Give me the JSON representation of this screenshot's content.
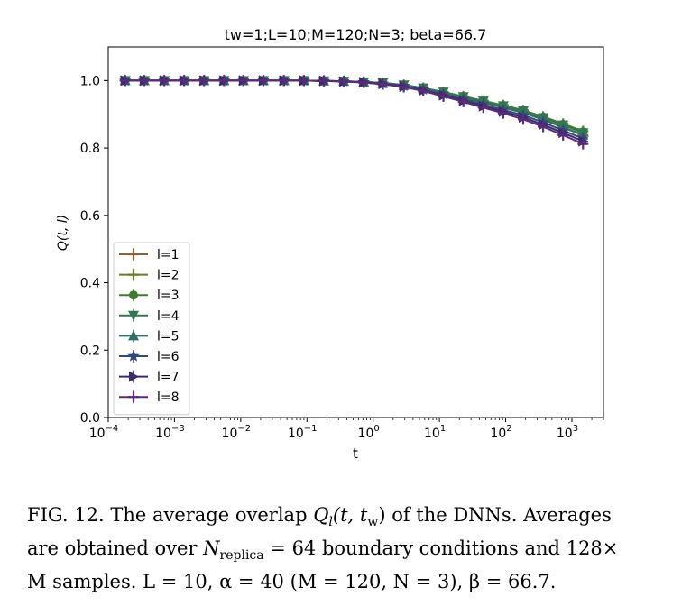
{
  "chart_data": {
    "type": "line",
    "title": "tw=1;L=10;M=120;N=3; beta=66.7",
    "xlabel": "t",
    "ylabel": "Q(t, l)",
    "xscale": "log",
    "xlim": [
      0.0001,
      3000
    ],
    "ylim": [
      0.0,
      1.1
    ],
    "xticks": [
      {
        "value": 0.0001,
        "base": "10",
        "exp": "−4"
      },
      {
        "value": 0.001,
        "base": "10",
        "exp": "−3"
      },
      {
        "value": 0.01,
        "base": "10",
        "exp": "−2"
      },
      {
        "value": 0.1,
        "base": "10",
        "exp": "−1"
      },
      {
        "value": 1,
        "base": "10",
        "exp": "0"
      },
      {
        "value": 10,
        "base": "10",
        "exp": "1"
      },
      {
        "value": 100,
        "base": "10",
        "exp": "2"
      },
      {
        "value": 1000,
        "base": "10",
        "exp": "3"
      }
    ],
    "yticks": [
      "0.0",
      "0.2",
      "0.4",
      "0.6",
      "0.8",
      "1.0"
    ],
    "legend_position": "lower-left",
    "x": [
      0.00018,
      0.00035,
      0.0007,
      0.0014,
      0.0028,
      0.0056,
      0.011,
      0.022,
      0.045,
      0.09,
      0.18,
      0.36,
      0.72,
      1.4,
      2.9,
      5.7,
      11.5,
      23,
      46,
      92,
      184,
      368,
      736,
      1472
    ],
    "series": [
      {
        "name": "l=1",
        "color": "#8c6239",
        "marker": "plus",
        "values": [
          1,
          1,
          1,
          1,
          1,
          1,
          1,
          1,
          1,
          1,
          0.999,
          0.998,
          0.996,
          0.992,
          0.985,
          0.975,
          0.962,
          0.948,
          0.935,
          0.92,
          0.905,
          0.885,
          0.862,
          0.838
        ]
      },
      {
        "name": "l=2",
        "color": "#6b7a26",
        "marker": "plus",
        "values": [
          1,
          1,
          1,
          1,
          1,
          1,
          1,
          1,
          1,
          1,
          0.999,
          0.998,
          0.996,
          0.993,
          0.987,
          0.978,
          0.966,
          0.953,
          0.94,
          0.927,
          0.912,
          0.893,
          0.872,
          0.85
        ]
      },
      {
        "name": "l=3",
        "color": "#3f7a2e",
        "marker": "circle",
        "values": [
          1,
          1,
          1,
          1,
          1,
          1,
          1,
          1,
          1,
          1,
          0.999,
          0.998,
          0.996,
          0.993,
          0.987,
          0.978,
          0.966,
          0.953,
          0.94,
          0.926,
          0.911,
          0.892,
          0.87,
          0.848
        ]
      },
      {
        "name": "l=4",
        "color": "#2e7a4e",
        "marker": "triangle-down",
        "values": [
          1,
          1,
          1,
          1,
          1,
          1,
          1,
          1,
          1,
          1,
          0.999,
          0.998,
          0.996,
          0.993,
          0.987,
          0.978,
          0.966,
          0.952,
          0.939,
          0.925,
          0.91,
          0.89,
          0.868,
          0.845
        ]
      },
      {
        "name": "l=5",
        "color": "#2e6f6a",
        "marker": "triangle-up",
        "values": [
          1,
          1,
          1,
          1,
          1,
          1,
          1,
          1,
          1,
          1,
          0.999,
          0.998,
          0.996,
          0.992,
          0.986,
          0.976,
          0.963,
          0.949,
          0.935,
          0.92,
          0.904,
          0.884,
          0.861,
          0.838
        ]
      },
      {
        "name": "l=6",
        "color": "#34487a",
        "marker": "star",
        "values": [
          1,
          1,
          1,
          1,
          1,
          1,
          1,
          1,
          1,
          1,
          0.999,
          0.998,
          0.995,
          0.991,
          0.984,
          0.973,
          0.959,
          0.944,
          0.929,
          0.913,
          0.897,
          0.876,
          0.852,
          0.828
        ]
      },
      {
        "name": "l=7",
        "color": "#3b2a70",
        "marker": "triangle-right",
        "values": [
          1,
          1,
          1,
          1,
          1,
          1,
          1,
          1,
          1,
          1,
          0.999,
          0.997,
          0.995,
          0.99,
          0.982,
          0.971,
          0.956,
          0.94,
          0.924,
          0.908,
          0.891,
          0.869,
          0.845,
          0.82
        ]
      },
      {
        "name": "l=8",
        "color": "#5c2a7a",
        "marker": "plus",
        "values": [
          1,
          1,
          1,
          1,
          1,
          1,
          1,
          1,
          1,
          1,
          0.999,
          0.997,
          0.994,
          0.989,
          0.981,
          0.969,
          0.953,
          0.937,
          0.92,
          0.903,
          0.885,
          0.863,
          0.838,
          0.812
        ]
      }
    ]
  },
  "caption": {
    "line1_prefix": "FIG. 12.  The average overlap ",
    "line1_math_Q": "Q",
    "line1_math_l": "l",
    "line1_math_args": "(t, t",
    "line1_math_w": "w",
    "line1_math_close": ")",
    "line1_suffix": " of the DNNs.  Averages",
    "line2_prefix": "are obtained over ",
    "line2_N": "N",
    "line2_sub": "replica",
    "line2_suffix": " = 64 boundary conditions and 128×",
    "line3": "M samples.  L = 10, α = 40 (M = 120, N = 3), β = 66.7."
  }
}
